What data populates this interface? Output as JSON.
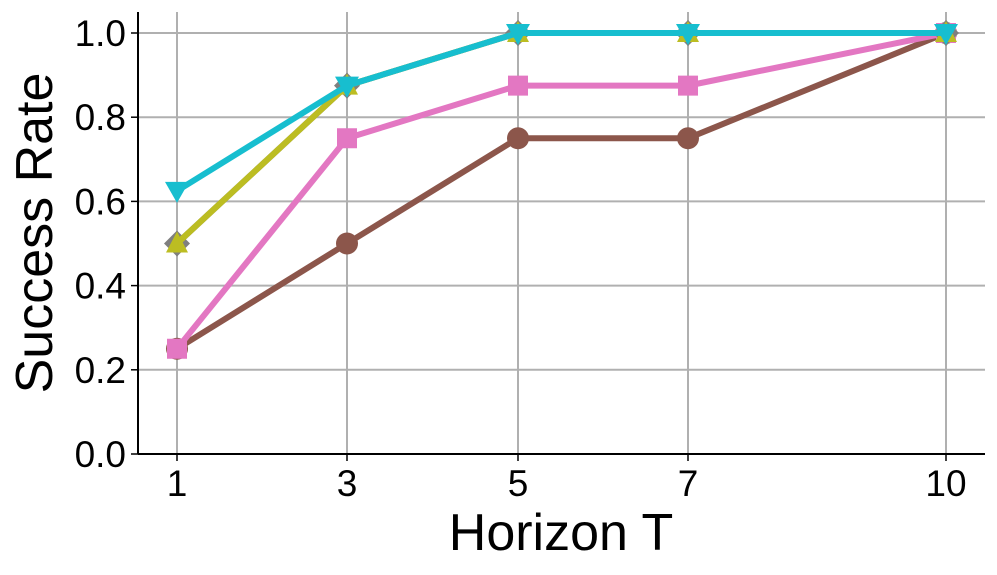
{
  "chart_data": {
    "type": "line",
    "title": "",
    "xlabel": "Horizon T",
    "ylabel": "Success Rate",
    "x": [
      1,
      3,
      5,
      7,
      10
    ],
    "x_tick_labels": [
      "1",
      "3",
      "5",
      "7",
      "10"
    ],
    "y_ticks": [
      0.0,
      0.2,
      0.4,
      0.6,
      0.8,
      1.0
    ],
    "y_tick_labels": [
      "0.0",
      "0.2",
      "0.4",
      "0.6",
      "0.8",
      "1.0"
    ],
    "ylim": [
      0.0,
      1.05
    ],
    "grid": true,
    "legend": null,
    "series": [
      {
        "name": "brown-circle",
        "color": "#8c564b",
        "marker": "circle",
        "values": [
          0.25,
          0.5,
          0.75,
          0.75,
          1.0
        ]
      },
      {
        "name": "pink-square",
        "color": "#e377c2",
        "marker": "square",
        "values": [
          0.25,
          0.75,
          0.875,
          0.875,
          1.0
        ]
      },
      {
        "name": "gray-diamond",
        "color": "#7f7f7f",
        "marker": "diamond",
        "values": [
          0.5,
          0.875,
          1.0,
          1.0,
          1.0
        ]
      },
      {
        "name": "olive-triangle-up",
        "color": "#bcbd22",
        "marker": "triangle-up",
        "values": [
          0.5,
          0.875,
          1.0,
          1.0,
          1.0
        ]
      },
      {
        "name": "cyan-triangle-down",
        "color": "#17becf",
        "marker": "triangle-down",
        "values": [
          0.625,
          0.875,
          1.0,
          1.0,
          1.0
        ]
      }
    ]
  }
}
